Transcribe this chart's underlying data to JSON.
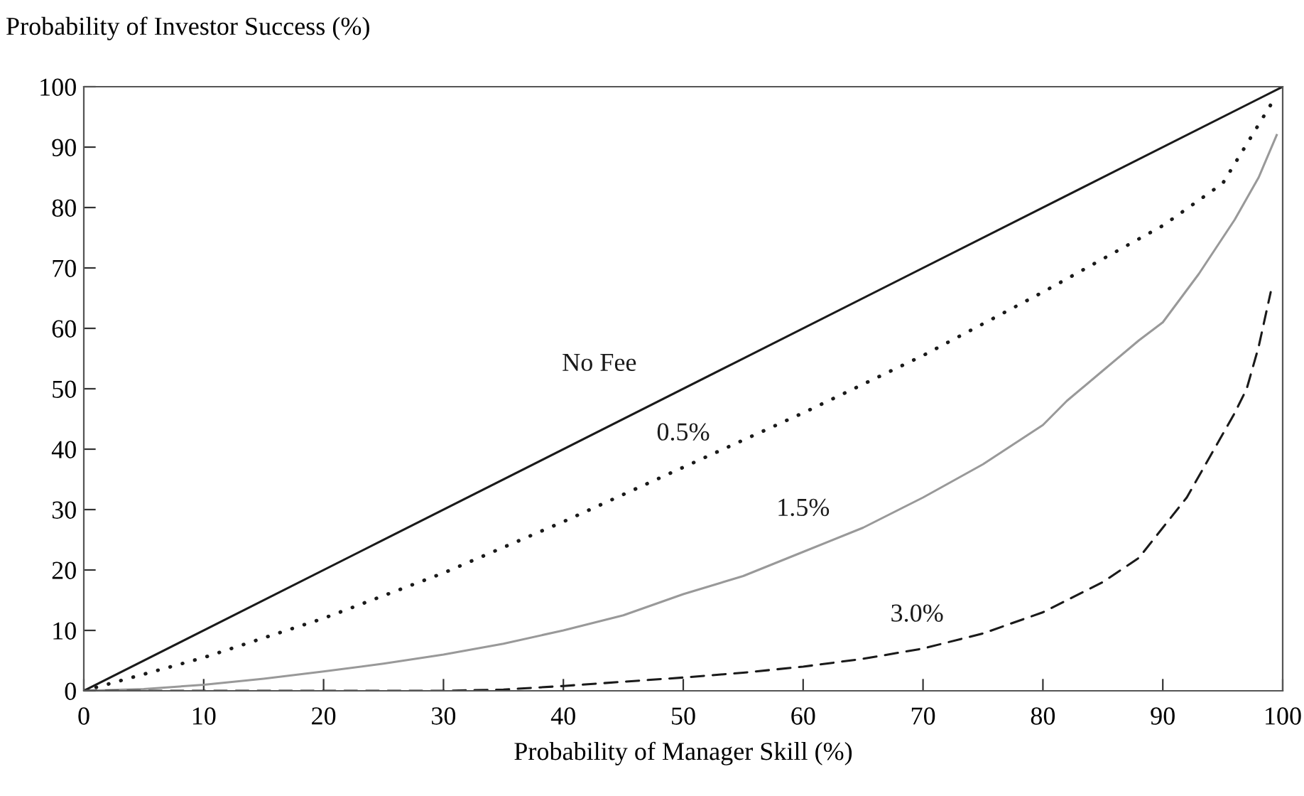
{
  "chart_data": {
    "type": "line",
    "ylabel": "Probability of Investor Success (%)",
    "xlabel": "Probability of Manager Skill (%)",
    "xlim": [
      0,
      100
    ],
    "ylim": [
      0,
      100
    ],
    "xticks": [
      0,
      10,
      20,
      30,
      40,
      50,
      60,
      70,
      80,
      90,
      100
    ],
    "yticks": [
      0,
      10,
      20,
      30,
      40,
      50,
      60,
      70,
      80,
      90,
      100
    ],
    "series": [
      {
        "name": "No Fee",
        "color": "#1a1a1a",
        "line_style": "solid",
        "x": [
          0,
          100
        ],
        "values": [
          0,
          100
        ]
      },
      {
        "name": "0.5%",
        "color": "#1a1a1a",
        "line_style": "dotted",
        "x": [
          0,
          10,
          20,
          30,
          40,
          50,
          60,
          70,
          80,
          90,
          95,
          99
        ],
        "values": [
          0,
          5.5,
          12,
          19.5,
          28,
          37,
          46,
          55.5,
          66,
          77,
          84,
          97
        ]
      },
      {
        "name": "1.5%",
        "color": "#999999",
        "line_style": "solid",
        "x": [
          0,
          5,
          10,
          15,
          20,
          25,
          30,
          35,
          40,
          45,
          50,
          55,
          60,
          65,
          70,
          75,
          80,
          82,
          85,
          88,
          90,
          93,
          96,
          98,
          99.5
        ],
        "values": [
          0,
          0.3,
          1,
          2,
          3.2,
          4.5,
          6,
          7.8,
          10,
          12.5,
          16,
          19,
          23,
          27,
          32,
          37.5,
          44,
          48,
          53,
          58,
          61,
          69,
          78,
          85,
          92
        ]
      },
      {
        "name": "3.0%",
        "color": "#1a1a1a",
        "line_style": "dashed",
        "x": [
          0,
          10,
          20,
          30,
          35,
          40,
          45,
          50,
          55,
          60,
          65,
          70,
          75,
          80,
          82,
          85,
          88,
          90,
          92,
          94,
          96,
          97,
          98,
          99
        ],
        "values": [
          0,
          0,
          0,
          0,
          0.2,
          0.8,
          1.5,
          2.2,
          3,
          4,
          5.3,
          7,
          9.5,
          13,
          15,
          18,
          22,
          27,
          32,
          39,
          46,
          50,
          57,
          66
        ]
      }
    ]
  }
}
